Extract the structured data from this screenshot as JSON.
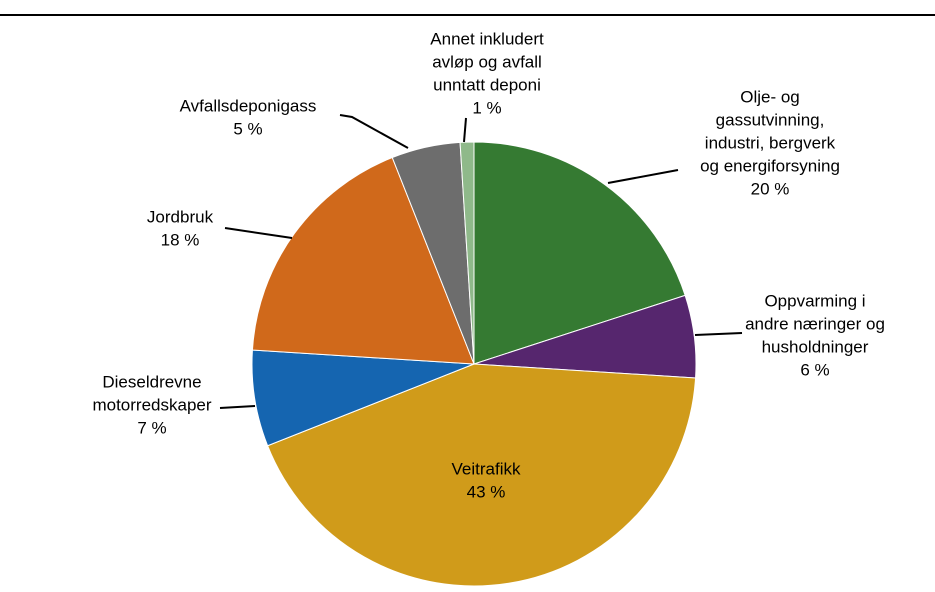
{
  "chart_data": {
    "type": "pie",
    "categories": [
      [
        "Olje- og",
        "gassutvinning,",
        "industri, bergverk",
        "og energiforsyning"
      ],
      [
        "Oppvarming i",
        "andre næringer og",
        "husholdninger"
      ],
      [
        "Veitrafikk"
      ],
      [
        "Dieseldrevne",
        "motorredskaper"
      ],
      [
        "Jordbruk"
      ],
      [
        "Avfallsdeponigass"
      ],
      [
        "Annet inkludert",
        "avløp og avfall",
        "unntatt deponi"
      ]
    ],
    "values": [
      20,
      6,
      43,
      7,
      18,
      5,
      1
    ],
    "value_labels": [
      "20 %",
      "6 %",
      "43 %",
      "7 %",
      "18 %",
      "5 %",
      "1 %"
    ],
    "colors": [
      "#357a32",
      "#56266e",
      "#d09b1a",
      "#1565b0",
      "#d0691b",
      "#6d6d6d",
      "#8fb98a"
    ]
  }
}
